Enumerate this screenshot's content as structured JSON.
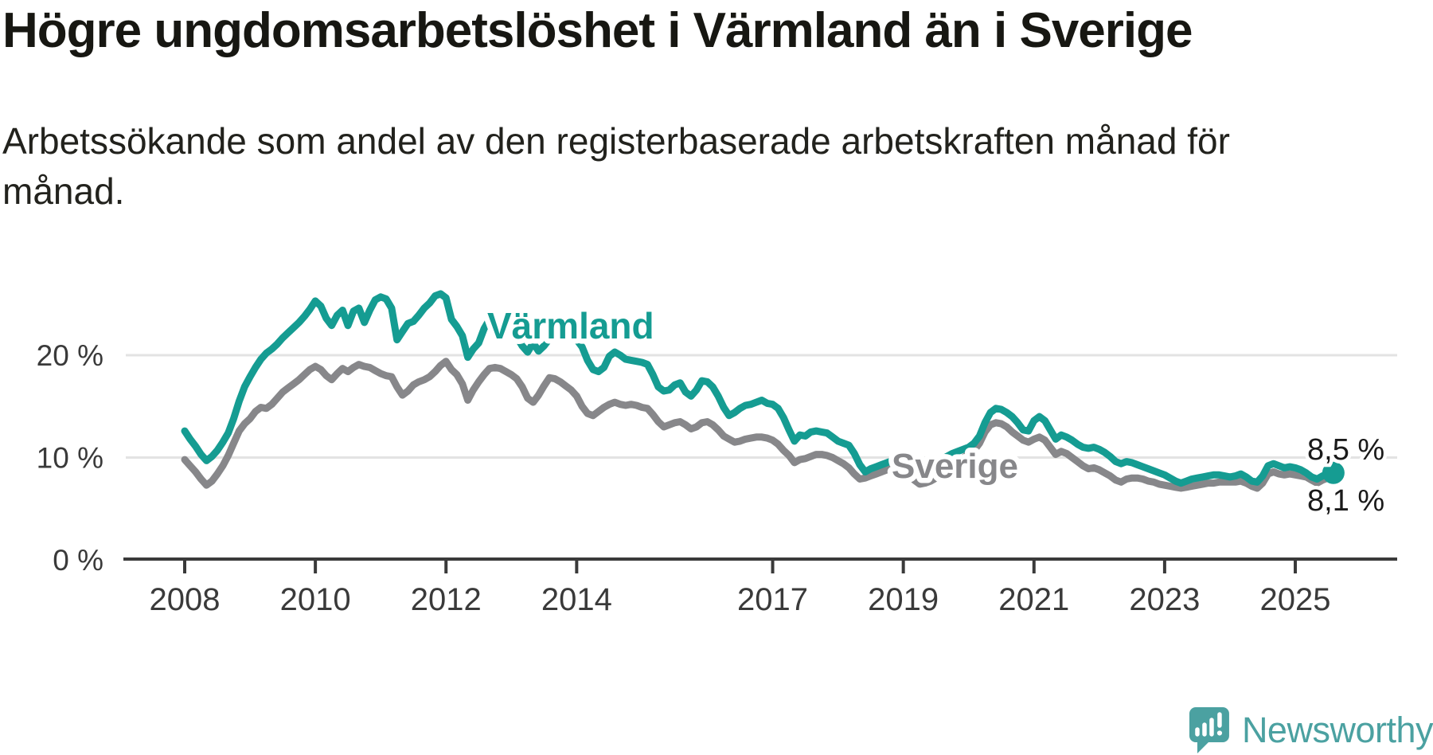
{
  "header": {
    "title": "Högre ungdomsarbetslöshet i Värmland än i Sverige",
    "subtitle_lines": [
      "Arbetssökande som andel av den registerbaserade arbetskraften månad för",
      "månad."
    ]
  },
  "chart_data": {
    "type": "line",
    "unit": "%",
    "grid": true,
    "legend_position": "inline-labels",
    "x_axis": {
      "start_year": 2008,
      "step_months": 1,
      "tick_labels": [
        "2008",
        "2010",
        "2012",
        "2014",
        "2017",
        "2019",
        "2021",
        "2023",
        "2025"
      ],
      "tick_years": [
        2008,
        2010,
        2012,
        2014,
        2017,
        2019,
        2021,
        2023,
        2025
      ]
    },
    "y_axis": {
      "ticks": [
        {
          "value": 20,
          "label": "20 %"
        },
        {
          "value": 10,
          "label": "10 %"
        },
        {
          "value": 0,
          "label": "0 %"
        }
      ],
      "max": 27.5
    },
    "colors": {
      "varmland": "#159c92",
      "sverige": "#87878a",
      "grid": "#e3e3e3",
      "axis": "#3a3a3a",
      "end_label": "#1a1a1a"
    },
    "series": [
      {
        "name": "Sverige",
        "color": "#87878a",
        "end_label": "8,1 %",
        "end_dot": false,
        "values": [
          9.8,
          9.2,
          8.6,
          7.9,
          7.3,
          7.7,
          8.4,
          9.2,
          10.2,
          11.4,
          12.6,
          13.3,
          13.8,
          14.5,
          14.9,
          14.8,
          15.2,
          15.8,
          16.4,
          16.8,
          17.2,
          17.6,
          18.1,
          18.6,
          18.9,
          18.6,
          18.0,
          17.6,
          18.2,
          18.7,
          18.4,
          18.8,
          19.1,
          18.9,
          18.8,
          18.5,
          18.2,
          18.0,
          17.9,
          16.9,
          16.1,
          16.5,
          17.1,
          17.4,
          17.6,
          17.9,
          18.4,
          19.0,
          19.4,
          18.6,
          18.1,
          17.2,
          15.6,
          16.6,
          17.4,
          18.1,
          18.7,
          18.8,
          18.7,
          18.4,
          18.1,
          17.7,
          16.9,
          15.8,
          15.4,
          16.1,
          17.0,
          17.8,
          17.7,
          17.4,
          17.0,
          16.6,
          16.0,
          15.0,
          14.3,
          14.1,
          14.5,
          14.9,
          15.2,
          15.4,
          15.2,
          15.1,
          15.2,
          15.1,
          14.9,
          14.8,
          14.2,
          13.5,
          13.0,
          13.2,
          13.4,
          13.5,
          13.2,
          12.8,
          13.0,
          13.4,
          13.5,
          13.2,
          12.7,
          12.1,
          11.8,
          11.5,
          11.6,
          11.8,
          11.9,
          12.0,
          12.0,
          11.9,
          11.7,
          11.3,
          10.7,
          10.2,
          9.5,
          9.8,
          9.9,
          10.1,
          10.3,
          10.3,
          10.2,
          10.0,
          9.7,
          9.4,
          9.0,
          8.4,
          7.9,
          8.0,
          8.2,
          8.4,
          8.6,
          8.8,
          8.9,
          8.9,
          8.8,
          8.4,
          7.8,
          7.4,
          7.5,
          7.7,
          8.0,
          8.3,
          8.7,
          9.1,
          9.6,
          10.0,
          10.3,
          10.7,
          11.4,
          12.5,
          13.2,
          13.4,
          13.3,
          13.0,
          12.5,
          12.1,
          11.7,
          11.5,
          11.8,
          12.0,
          11.7,
          11.0,
          10.3,
          10.6,
          10.4,
          10.0,
          9.6,
          9.2,
          8.9,
          9.0,
          8.8,
          8.5,
          8.2,
          7.8,
          7.6,
          7.9,
          8.0,
          8.0,
          7.9,
          7.7,
          7.6,
          7.4,
          7.3,
          7.2,
          7.1,
          7.0,
          7.1,
          7.2,
          7.3,
          7.4,
          7.5,
          7.5,
          7.6,
          7.6,
          7.6,
          7.6,
          7.7,
          7.5,
          7.2,
          7.0,
          7.5,
          8.4,
          8.6,
          8.4,
          8.3,
          8.4,
          8.3,
          8.2,
          8.1,
          7.8,
          7.5,
          7.8,
          8.0,
          8.1
        ]
      },
      {
        "name": "Värmland",
        "color": "#159c92",
        "end_label": "8,5 %",
        "end_dot": true,
        "values": [
          12.6,
          11.8,
          11.1,
          10.3,
          9.7,
          10.1,
          10.7,
          11.5,
          12.4,
          13.8,
          15.5,
          16.9,
          17.9,
          18.8,
          19.6,
          20.2,
          20.6,
          21.1,
          21.7,
          22.2,
          22.7,
          23.2,
          23.8,
          24.5,
          25.3,
          24.8,
          23.6,
          22.9,
          23.9,
          24.4,
          22.9,
          24.3,
          24.6,
          23.2,
          24.4,
          25.4,
          25.7,
          25.5,
          24.6,
          21.5,
          22.3,
          23.1,
          23.3,
          23.9,
          24.6,
          25.1,
          25.8,
          26.0,
          25.6,
          23.5,
          22.8,
          21.9,
          19.8,
          20.6,
          21.2,
          22.6,
          23.5,
          23.4,
          23.2,
          23.0,
          22.6,
          21.8,
          20.9,
          20.3,
          21.2,
          20.4,
          20.9,
          21.6,
          22.1,
          22.3,
          22.0,
          21.7,
          21.5,
          20.8,
          19.5,
          18.6,
          18.4,
          18.8,
          19.9,
          20.3,
          20.0,
          19.6,
          19.5,
          19.4,
          19.3,
          19.1,
          18.1,
          16.9,
          16.5,
          16.6,
          17.1,
          17.3,
          16.4,
          16.0,
          16.6,
          17.5,
          17.4,
          16.9,
          16.0,
          14.9,
          14.1,
          14.4,
          14.8,
          15.1,
          15.2,
          15.4,
          15.6,
          15.3,
          15.2,
          14.8,
          13.9,
          12.7,
          11.6,
          12.2,
          12.1,
          12.5,
          12.6,
          12.5,
          12.4,
          12.0,
          11.6,
          11.4,
          11.2,
          10.4,
          9.3,
          8.6,
          8.9,
          9.1,
          9.3,
          9.5,
          9.7,
          9.9,
          9.9,
          9.5,
          9.0,
          8.7,
          8.9,
          9.2,
          9.5,
          9.8,
          10.1,
          10.4,
          10.6,
          10.8,
          11.0,
          11.4,
          12.1,
          13.4,
          14.4,
          14.8,
          14.7,
          14.4,
          14.0,
          13.4,
          12.7,
          12.6,
          13.6,
          14.0,
          13.6,
          12.7,
          11.8,
          12.2,
          12.0,
          11.7,
          11.3,
          11.0,
          10.9,
          11.0,
          10.8,
          10.5,
          10.1,
          9.6,
          9.4,
          9.6,
          9.5,
          9.3,
          9.1,
          8.9,
          8.7,
          8.5,
          8.3,
          8.0,
          7.7,
          7.5,
          7.7,
          7.9,
          8.0,
          8.1,
          8.2,
          8.3,
          8.3,
          8.2,
          8.1,
          8.2,
          8.4,
          8.1,
          7.7,
          7.6,
          8.2,
          9.2,
          9.4,
          9.2,
          9.0,
          9.1,
          9.0,
          8.8,
          8.5,
          8.1,
          7.9,
          8.2,
          8.4,
          8.5
        ]
      }
    ]
  },
  "footer": {
    "brand": "Newsworthy"
  }
}
